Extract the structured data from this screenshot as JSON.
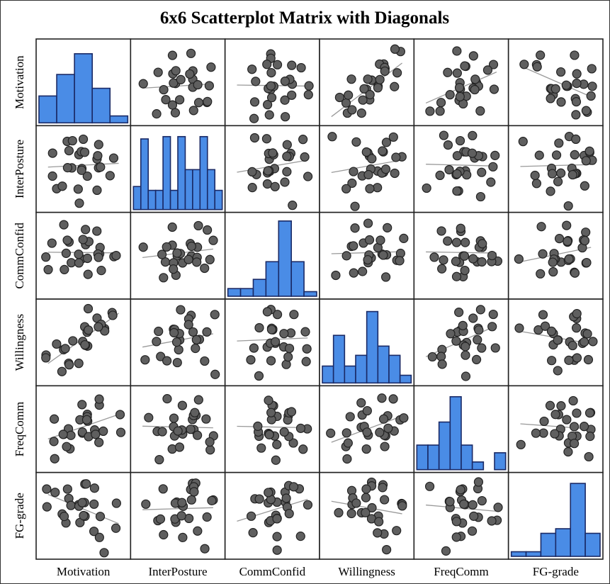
{
  "chart_data": {
    "type": "scatter",
    "title": "6x6 Scatterplot Matrix with Diagonals",
    "variables": [
      "Motivation",
      "InterPosture",
      "CommConfid",
      "Willingness",
      "FreqComm",
      "FG-grade"
    ],
    "diagonal_type": "histogram",
    "grid": false,
    "colors": {
      "histogram_fill": "#4a8ce6",
      "histogram_stroke": "#1a2a66",
      "point_fill": "#5f5f5f",
      "point_stroke": "#222222",
      "fit_line": "#9a9a9a",
      "panel_border": "#222222"
    },
    "histograms": [
      [
        0.35,
        0.63,
        0.9,
        0.45,
        0.09
      ],
      [
        0.3,
        0.92,
        0.25,
        0.25,
        0.95,
        0.25,
        0.95,
        0.52,
        0.52,
        0.95,
        0.52,
        0.25
      ],
      [
        0.1,
        0.1,
        0.22,
        0.45,
        0.98,
        0.45,
        0.06
      ],
      [
        0.22,
        0.62,
        0.22,
        0.36,
        0.93,
        0.48,
        0.36,
        0.1
      ],
      [
        0.32,
        0.32,
        0.62,
        0.95,
        0.32,
        0.1,
        0.0,
        0.22
      ],
      [
        0.06,
        0.06,
        0.3,
        0.36,
        0.95,
        0.3
      ]
    ],
    "observations": [
      [
        2,
        5,
        2,
        1,
        3,
        3
      ],
      [
        2,
        3,
        4,
        3,
        2,
        4
      ],
      [
        3,
        3,
        3,
        4,
        4,
        3
      ],
      [
        3,
        4,
        5,
        3,
        3,
        5
      ],
      [
        4,
        4,
        3,
        5,
        5,
        4
      ],
      [
        1,
        2,
        3,
        2,
        1,
        5
      ],
      [
        2,
        3,
        3,
        3,
        3,
        3
      ],
      [
        3,
        5,
        4,
        5,
        4,
        4
      ],
      [
        4,
        2,
        2,
        4,
        3,
        2
      ],
      [
        3,
        3,
        3,
        4,
        3,
        4
      ],
      [
        1,
        4,
        4,
        3,
        4,
        5
      ],
      [
        5,
        4,
        3,
        5,
        4,
        2
      ],
      [
        2,
        5,
        5,
        2,
        2,
        4
      ],
      [
        3,
        2,
        3,
        3,
        5,
        3
      ],
      [
        4,
        4,
        4,
        4,
        3,
        5
      ],
      [
        3,
        3,
        2,
        3,
        3,
        4
      ],
      [
        2,
        2,
        4,
        2,
        3,
        3
      ],
      [
        4,
        5,
        3,
        4,
        2,
        1
      ],
      [
        3,
        4,
        4,
        4,
        4,
        5
      ],
      [
        5,
        3,
        3,
        5,
        3,
        4
      ],
      [
        1,
        3,
        2,
        2,
        2,
        4
      ],
      [
        3,
        4,
        3,
        3,
        4,
        3
      ],
      [
        4,
        3,
        5,
        4,
        3,
        2
      ],
      [
        2,
        4,
        3,
        3,
        3,
        5
      ],
      [
        3,
        1,
        4,
        2,
        4,
        4
      ],
      [
        4,
        3,
        3,
        4,
        5,
        3
      ]
    ],
    "axis_ranges": [
      [
        0.5,
        5.5
      ],
      [
        0.5,
        5.5
      ],
      [
        0.5,
        5.5
      ],
      [
        0.5,
        5.5
      ],
      [
        0.5,
        5.5
      ],
      [
        0.5,
        5.5
      ]
    ],
    "fit_lines": "least-squares",
    "xlabel": "",
    "ylabel": ""
  }
}
